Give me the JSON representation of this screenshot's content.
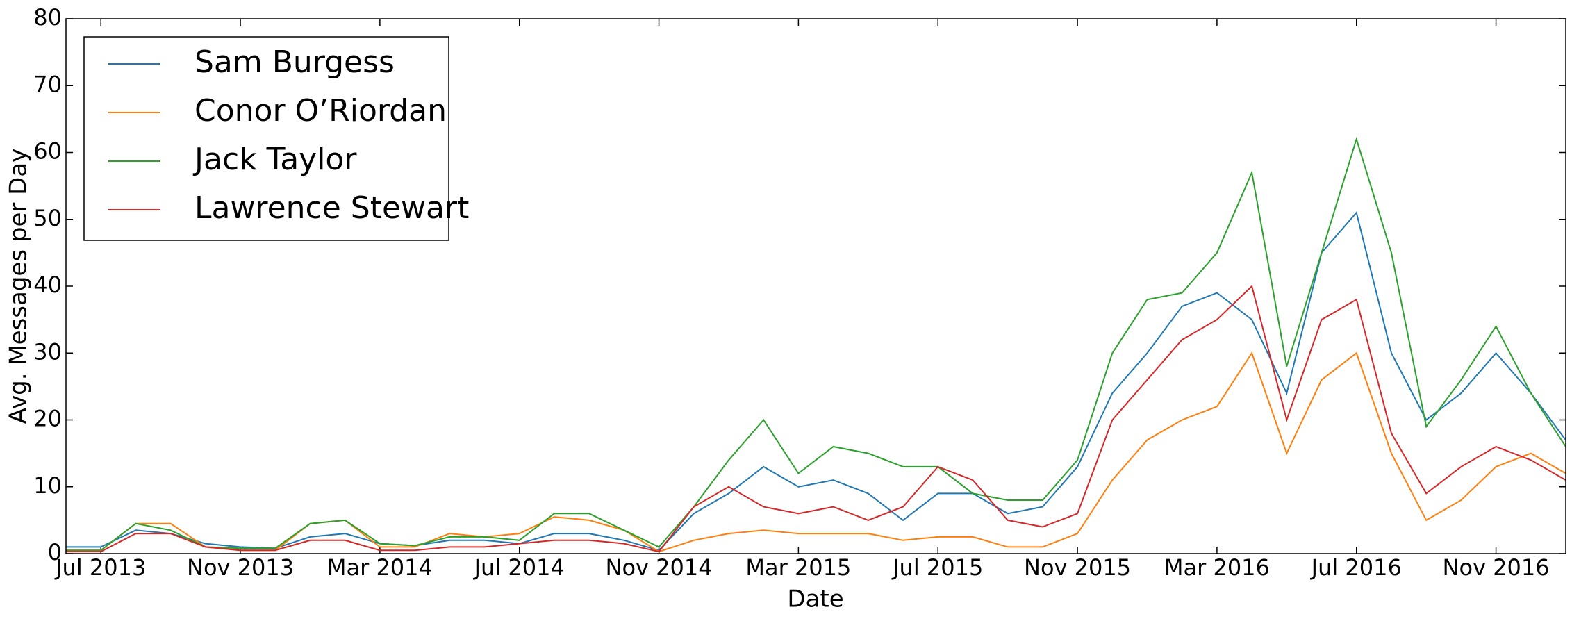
{
  "chart_data": {
    "type": "line",
    "xlabel": "Date",
    "ylabel": "Avg. Messages per Day",
    "x": [
      "2013-06",
      "2013-07",
      "2013-08",
      "2013-09",
      "2013-10",
      "2013-11",
      "2013-12",
      "2014-01",
      "2014-02",
      "2014-03",
      "2014-04",
      "2014-05",
      "2014-06",
      "2014-07",
      "2014-08",
      "2014-09",
      "2014-10",
      "2014-11",
      "2014-12",
      "2015-01",
      "2015-02",
      "2015-03",
      "2015-04",
      "2015-05",
      "2015-06",
      "2015-07",
      "2015-08",
      "2015-09",
      "2015-10",
      "2015-11",
      "2015-12",
      "2016-01",
      "2016-02",
      "2016-03",
      "2016-04",
      "2016-05",
      "2016-06",
      "2016-07",
      "2016-08",
      "2016-09",
      "2016-10",
      "2016-11",
      "2016-12",
      "2017-01"
    ],
    "series": [
      {
        "name": "Sam Burgess",
        "color": "#1f77b4",
        "values": [
          1,
          1,
          3.5,
          3,
          1.5,
          1,
          0.8,
          2.5,
          3,
          1.5,
          1.2,
          2,
          2,
          1.5,
          3,
          3,
          2,
          0.5,
          6,
          9,
          13,
          10,
          11,
          9,
          5,
          9,
          9,
          6,
          7,
          13,
          24,
          30,
          37,
          39,
          35,
          24,
          45,
          51,
          30,
          20,
          24,
          30,
          24,
          17
        ]
      },
      {
        "name": "Conor O’Riordan",
        "color": "#ff7f0e",
        "values": [
          0.5,
          0.5,
          4.5,
          4.5,
          1,
          0.5,
          0.5,
          4.5,
          5,
          1,
          1,
          3,
          2.5,
          3,
          5.5,
          5,
          3.5,
          0.3,
          2,
          3,
          3.5,
          3,
          3,
          3,
          2,
          2.5,
          2.5,
          1,
          1,
          3,
          11,
          17,
          20,
          22,
          30,
          15,
          26,
          30,
          15,
          5,
          8,
          13,
          15,
          12
        ]
      },
      {
        "name": "Jack Taylor",
        "color": "#2ca02c",
        "values": [
          0.5,
          0.5,
          4.5,
          3.5,
          1,
          0.8,
          0.8,
          4.5,
          5,
          1.5,
          1.2,
          2.5,
          2.5,
          2,
          6,
          6,
          3.5,
          1,
          7,
          14,
          20,
          12,
          16,
          15,
          13,
          13,
          9,
          8,
          8,
          14,
          30,
          38,
          39,
          45,
          57,
          28,
          45,
          62,
          45,
          19,
          26,
          34,
          24,
          16
        ]
      },
      {
        "name": "Lawrence Stewart",
        "color": "#d62728",
        "values": [
          0.3,
          0.3,
          3,
          3,
          1,
          0.5,
          0.5,
          2,
          2,
          0.5,
          0.5,
          1,
          1,
          1.5,
          2,
          2,
          1.5,
          0.3,
          7,
          10,
          7,
          6,
          7,
          5,
          7,
          13,
          11,
          5,
          4,
          6,
          20,
          26,
          32,
          35,
          40,
          20,
          35,
          38,
          18,
          9,
          13,
          16,
          14,
          11
        ]
      }
    ],
    "xlim": [
      "2013-06",
      "2017-01"
    ],
    "xticks": [
      {
        "value": "2013-07",
        "label": "Jul 2013"
      },
      {
        "value": "2013-11",
        "label": "Nov 2013"
      },
      {
        "value": "2014-03",
        "label": "Mar 2014"
      },
      {
        "value": "2014-07",
        "label": "Jul 2014"
      },
      {
        "value": "2014-11",
        "label": "Nov 2014"
      },
      {
        "value": "2015-03",
        "label": "Mar 2015"
      },
      {
        "value": "2015-07",
        "label": "Jul 2015"
      },
      {
        "value": "2015-11",
        "label": "Nov 2015"
      },
      {
        "value": "2016-03",
        "label": "Mar 2016"
      },
      {
        "value": "2016-07",
        "label": "Jul 2016"
      },
      {
        "value": "2016-11",
        "label": "Nov 2016"
      }
    ],
    "ylim": [
      0,
      80
    ],
    "yticks": [
      0,
      10,
      20,
      30,
      40,
      50,
      60,
      70,
      80
    ],
    "legend": "upper-left"
  }
}
